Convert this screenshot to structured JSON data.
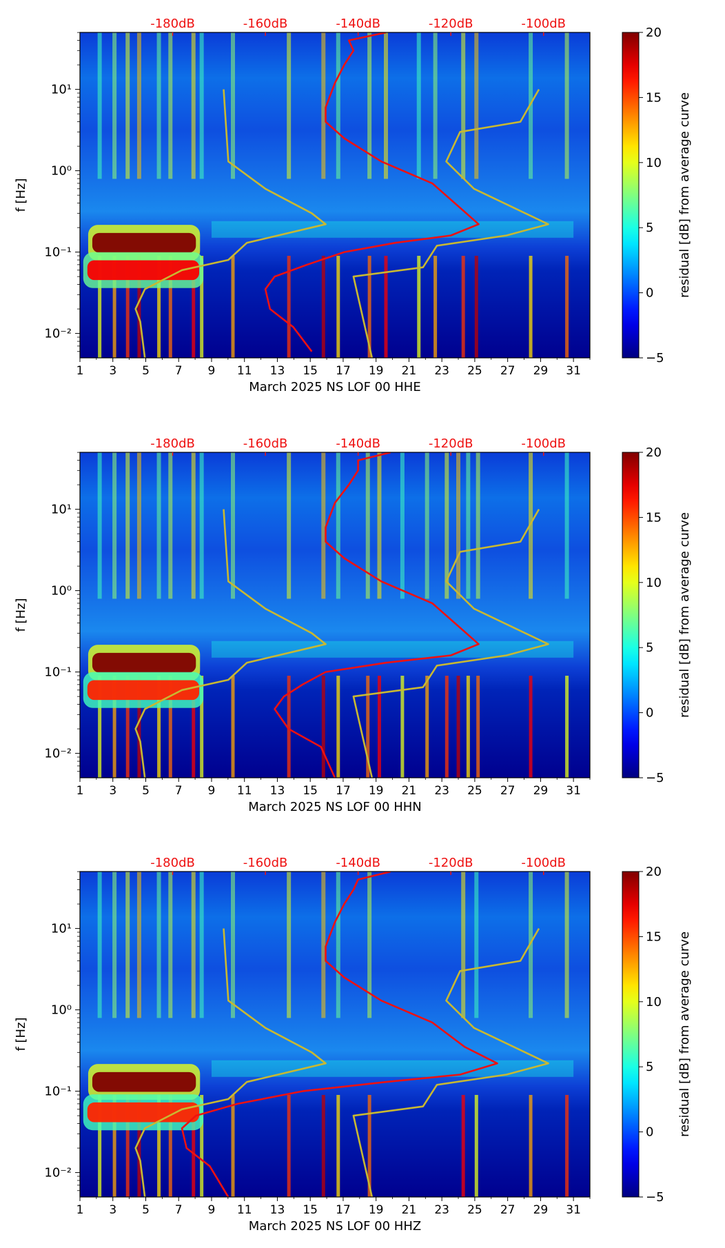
{
  "chart_data": [
    {
      "type": "heatmap",
      "xlabel": "March 2025 NS LOF 00 HHE",
      "ylabel": "f [Hz]",
      "x_ticks": [
        "1",
        "3",
        "5",
        "7",
        "9",
        "11",
        "13",
        "15",
        "17",
        "19",
        "21",
        "23",
        "25",
        "27",
        "29",
        "31"
      ],
      "y_ticks": [
        "10⁻²",
        "10⁻¹",
        "10⁰",
        "10¹"
      ],
      "top_ticks": [
        "-180dB",
        "-160dB",
        "-140dB",
        "-120dB",
        "-100dB"
      ],
      "colorbar_label": "residual [dB] from average curve",
      "colorbar_ticks": [
        "−5",
        "0",
        "5",
        "10",
        "15",
        "20"
      ],
      "clim": [
        -5,
        20
      ],
      "xlim": [
        1,
        32
      ],
      "ylim_log10": [
        -2.3,
        1.7
      ],
      "bands": [
        {
          "kind": "microseism",
          "x0": 1.5,
          "x1": 8.3,
          "f": 0.13,
          "v": 20
        },
        {
          "kind": "microseism",
          "x0": 1.2,
          "x1": 8.5,
          "f": 0.06,
          "v": 17
        }
      ],
      "event_days": [
        2.2,
        3.1,
        3.9,
        4.6,
        5.8,
        6.5,
        7.9,
        8.4,
        10.3,
        13.7,
        15.8,
        16.7,
        18.6,
        19.6,
        21.6,
        22.6,
        24.3,
        25.1,
        28.4,
        30.6
      ],
      "red_curve": [
        [
          -134,
          50
        ],
        [
          -142,
          40
        ],
        [
          -141,
          30
        ],
        [
          -143,
          20
        ],
        [
          -145,
          12
        ],
        [
          -147,
          6
        ],
        [
          -147,
          4
        ],
        [
          -143,
          2.5
        ],
        [
          -135,
          1.3
        ],
        [
          -124,
          0.7
        ],
        [
          -118,
          0.35
        ],
        [
          -114,
          0.22
        ],
        [
          -120,
          0.16
        ],
        [
          -132,
          0.13
        ],
        [
          -143,
          0.1
        ],
        [
          -151,
          0.07
        ],
        [
          -158,
          0.05
        ],
        [
          -160,
          0.035
        ],
        [
          -159,
          0.02
        ],
        [
          -154,
          0.012
        ],
        [
          -150,
          0.006
        ]
      ],
      "yellow_curve": [
        [
          -101,
          10
        ],
        [
          -105,
          4
        ],
        [
          -118,
          3
        ],
        [
          -121,
          1.3
        ],
        [
          -115,
          0.6
        ],
        [
          -99,
          0.22
        ],
        [
          -108,
          0.16
        ],
        [
          -123,
          0.12
        ],
        [
          -126,
          0.065
        ],
        [
          -141,
          0.05
        ],
        [
          -137,
          0.005
        ]
      ],
      "low_noise_curve": [
        [
          -169,
          10
        ],
        [
          -168,
          1.3
        ],
        [
          -160,
          0.6
        ],
        [
          -150,
          0.3
        ],
        [
          -147,
          0.22
        ],
        [
          -164,
          0.13
        ],
        [
          -168,
          0.08
        ],
        [
          -178,
          0.06
        ],
        [
          -186,
          0.035
        ],
        [
          -188,
          0.02
        ],
        [
          -187,
          0.014
        ],
        [
          -186,
          0.005
        ]
      ]
    },
    {
      "type": "heatmap",
      "xlabel": "March 2025 NS LOF 00 HHN",
      "ylabel": "f [Hz]",
      "x_ticks": [
        "1",
        "3",
        "5",
        "7",
        "9",
        "11",
        "13",
        "15",
        "17",
        "19",
        "21",
        "23",
        "25",
        "27",
        "29",
        "31"
      ],
      "y_ticks": [
        "10⁻²",
        "10⁻¹",
        "10⁰",
        "10¹"
      ],
      "top_ticks": [
        "-180dB",
        "-160dB",
        "-140dB",
        "-120dB",
        "-100dB"
      ],
      "colorbar_label": "residual [dB] from average curve",
      "colorbar_ticks": [
        "−5",
        "0",
        "5",
        "10",
        "15",
        "20"
      ],
      "clim": [
        -5,
        20
      ],
      "xlim": [
        1,
        32
      ],
      "ylim_log10": [
        -2.3,
        1.7
      ],
      "bands": [
        {
          "kind": "microseism",
          "x0": 1.5,
          "x1": 8.3,
          "f": 0.13,
          "v": 20
        },
        {
          "kind": "microseism",
          "x0": 1.2,
          "x1": 8.5,
          "f": 0.06,
          "v": 16
        }
      ],
      "event_days": [
        2.2,
        3.1,
        3.9,
        4.6,
        5.8,
        6.5,
        7.9,
        8.4,
        10.3,
        13.7,
        15.8,
        16.7,
        18.5,
        19.2,
        20.6,
        22.1,
        23.3,
        24.0,
        24.6,
        25.2,
        28.4,
        30.6
      ],
      "red_curve": [
        [
          -133,
          50
        ],
        [
          -140,
          40
        ],
        [
          -140,
          30
        ],
        [
          -142,
          20
        ],
        [
          -145,
          12
        ],
        [
          -147,
          6
        ],
        [
          -147,
          4
        ],
        [
          -143,
          2.5
        ],
        [
          -135,
          1.3
        ],
        [
          -124,
          0.7
        ],
        [
          -118,
          0.35
        ],
        [
          -114,
          0.22
        ],
        [
          -120,
          0.16
        ],
        [
          -134,
          0.13
        ],
        [
          -147,
          0.1
        ],
        [
          -152,
          0.07
        ],
        [
          -156,
          0.05
        ],
        [
          -158,
          0.035
        ],
        [
          -155,
          0.02
        ],
        [
          -148,
          0.012
        ],
        [
          -145,
          0.005
        ]
      ],
      "yellow_curve": [
        [
          -101,
          10
        ],
        [
          -105,
          4
        ],
        [
          -118,
          3
        ],
        [
          -121,
          1.3
        ],
        [
          -115,
          0.6
        ],
        [
          -99,
          0.22
        ],
        [
          -108,
          0.16
        ],
        [
          -123,
          0.12
        ],
        [
          -126,
          0.065
        ],
        [
          -141,
          0.05
        ],
        [
          -137,
          0.005
        ]
      ],
      "low_noise_curve": [
        [
          -169,
          10
        ],
        [
          -168,
          1.3
        ],
        [
          -160,
          0.6
        ],
        [
          -150,
          0.3
        ],
        [
          -147,
          0.22
        ],
        [
          -164,
          0.13
        ],
        [
          -168,
          0.08
        ],
        [
          -178,
          0.06
        ],
        [
          -186,
          0.035
        ],
        [
          -188,
          0.02
        ],
        [
          -187,
          0.014
        ],
        [
          -186,
          0.005
        ]
      ]
    },
    {
      "type": "heatmap",
      "xlabel": "March 2025 NS LOF 00 HHZ",
      "ylabel": "f [Hz]",
      "x_ticks": [
        "1",
        "3",
        "5",
        "7",
        "9",
        "11",
        "13",
        "15",
        "17",
        "19",
        "21",
        "23",
        "25",
        "27",
        "29",
        "31"
      ],
      "y_ticks": [
        "10⁻²",
        "10⁻¹",
        "10⁰",
        "10¹"
      ],
      "top_ticks": [
        "-180dB",
        "-160dB",
        "-140dB",
        "-120dB",
        "-100dB"
      ],
      "colorbar_label": "residual [dB] from average curve",
      "colorbar_ticks": [
        "−5",
        "0",
        "5",
        "10",
        "15",
        "20"
      ],
      "clim": [
        -5,
        20
      ],
      "xlim": [
        1,
        32
      ],
      "ylim_log10": [
        -2.3,
        1.7
      ],
      "bands": [
        {
          "kind": "microseism",
          "x0": 1.5,
          "x1": 8.3,
          "f": 0.13,
          "v": 20
        },
        {
          "kind": "microseism",
          "x0": 1.2,
          "x1": 8.5,
          "f": 0.055,
          "v": 16
        }
      ],
      "event_days": [
        2.2,
        3.1,
        3.9,
        4.6,
        5.8,
        6.5,
        7.9,
        8.4,
        10.3,
        13.7,
        15.8,
        16.7,
        18.6,
        24.3,
        25.1,
        28.4,
        30.6
      ],
      "red_curve": [
        [
          -133,
          50
        ],
        [
          -140,
          40
        ],
        [
          -141,
          30
        ],
        [
          -143,
          20
        ],
        [
          -145,
          12
        ],
        [
          -147,
          6
        ],
        [
          -147,
          4
        ],
        [
          -143,
          2.5
        ],
        [
          -135,
          1.3
        ],
        [
          -124,
          0.7
        ],
        [
          -117,
          0.35
        ],
        [
          -110,
          0.22
        ],
        [
          -118,
          0.16
        ],
        [
          -134,
          0.13
        ],
        [
          -152,
          0.1
        ],
        [
          -166,
          0.07
        ],
        [
          -175,
          0.05
        ],
        [
          -178,
          0.035
        ],
        [
          -177,
          0.02
        ],
        [
          -172,
          0.012
        ],
        [
          -168,
          0.005
        ]
      ],
      "yellow_curve": [
        [
          -101,
          10
        ],
        [
          -105,
          4
        ],
        [
          -118,
          3
        ],
        [
          -121,
          1.3
        ],
        [
          -115,
          0.6
        ],
        [
          -99,
          0.22
        ],
        [
          -108,
          0.16
        ],
        [
          -123,
          0.12
        ],
        [
          -126,
          0.065
        ],
        [
          -141,
          0.05
        ],
        [
          -137,
          0.005
        ]
      ],
      "low_noise_curve": [
        [
          -169,
          10
        ],
        [
          -168,
          1.3
        ],
        [
          -160,
          0.6
        ],
        [
          -150,
          0.3
        ],
        [
          -147,
          0.22
        ],
        [
          -164,
          0.13
        ],
        [
          -168,
          0.08
        ],
        [
          -178,
          0.06
        ],
        [
          -186,
          0.035
        ],
        [
          -188,
          0.02
        ],
        [
          -187,
          0.014
        ],
        [
          -186,
          0.005
        ]
      ]
    }
  ]
}
